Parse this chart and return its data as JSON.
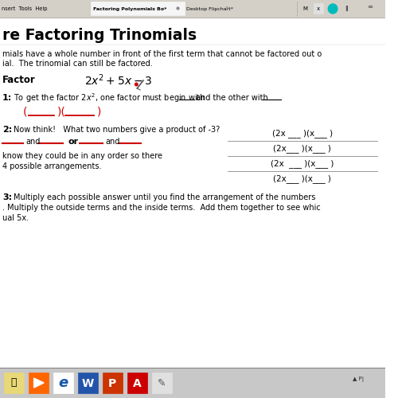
{
  "white_bg": "#ffffff",
  "toolbar_color": "#d4d0c8",
  "title": "re Factoring Trinomials",
  "black": "#000000",
  "red_color": "#cc0000",
  "intro_line1": "mials have a whole number in front of the first term that cannot be factored out o",
  "intro_line2": "ial.  The trinomial can still be factored.",
  "box_rows": [
    "(2x ___ )(x___ )",
    "(2x___ )(x___ )",
    "(2x  ___ )(x___ )",
    "(2x___ )(x___ )"
  ],
  "taskbar_bg": "#e8e8e8",
  "taskbar_separator": "#bbbbbb",
  "tab_active_color": "#f5f5f5",
  "tab_text": "Factoring Polynomials Bo*",
  "tab2_text": "Desktop Flipchart*"
}
